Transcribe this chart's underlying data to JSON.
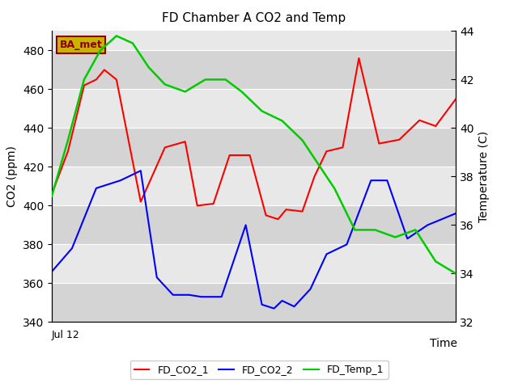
{
  "title": "FD Chamber A CO2 and Temp",
  "xlabel": "Time",
  "ylabel_left": "CO2 (ppm)",
  "ylabel_right": "Temperature (C)",
  "ylim_left": [
    340,
    490
  ],
  "ylim_right": [
    32,
    44
  ],
  "yticks_left": [
    340,
    360,
    380,
    400,
    420,
    440,
    460,
    480
  ],
  "yticks_right": [
    32,
    34,
    36,
    38,
    40,
    42,
    44
  ],
  "x_label_start": "Jul 12",
  "annotation_text": "BA_met",
  "annotation_bg": "#c8b400",
  "annotation_fg": "#8b0000",
  "bg_color": "#ffffff",
  "plot_bg_color": "#e8e8e8",
  "grid_color": "#ffffff",
  "band_color": "#d4d4d4",
  "FD_CO2_1_color": "#ff0000",
  "FD_CO2_2_color": "#0000ff",
  "FD_Temp_1_color": "#00cc00",
  "FD_CO2_1_x": [
    0,
    4,
    8,
    11,
    13,
    16,
    22,
    28,
    33,
    36,
    40,
    44,
    49,
    53,
    56,
    58,
    62,
    65,
    68,
    72,
    76,
    81,
    86,
    91,
    95,
    100
  ],
  "FD_CO2_1_y": [
    406,
    428,
    462,
    465,
    470,
    465,
    402,
    430,
    433,
    400,
    401,
    426,
    426,
    395,
    393,
    398,
    397,
    415,
    428,
    430,
    476,
    432,
    434,
    444,
    441,
    455
  ],
  "FD_CO2_2_x": [
    0,
    5,
    11,
    17,
    22,
    26,
    30,
    34,
    37,
    42,
    48,
    52,
    55,
    57,
    60,
    64,
    68,
    73,
    79,
    83,
    88,
    93,
    100
  ],
  "FD_CO2_2_y": [
    366,
    378,
    409,
    413,
    418,
    363,
    354,
    354,
    353,
    353,
    390,
    349,
    347,
    351,
    348,
    357,
    375,
    380,
    413,
    413,
    383,
    390,
    396
  ],
  "FD_Temp_1_x": [
    0,
    4,
    8,
    12,
    16,
    20,
    24,
    28,
    33,
    38,
    43,
    47,
    52,
    57,
    62,
    66,
    70,
    75,
    80,
    85,
    90,
    95,
    100
  ],
  "FD_Temp_1_y": [
    37.2,
    39.5,
    42.0,
    43.2,
    43.8,
    43.5,
    42.5,
    41.8,
    41.5,
    42.0,
    42.0,
    41.5,
    40.7,
    40.3,
    39.5,
    38.5,
    37.5,
    35.8,
    35.8,
    35.5,
    35.8,
    34.5,
    34.0
  ]
}
